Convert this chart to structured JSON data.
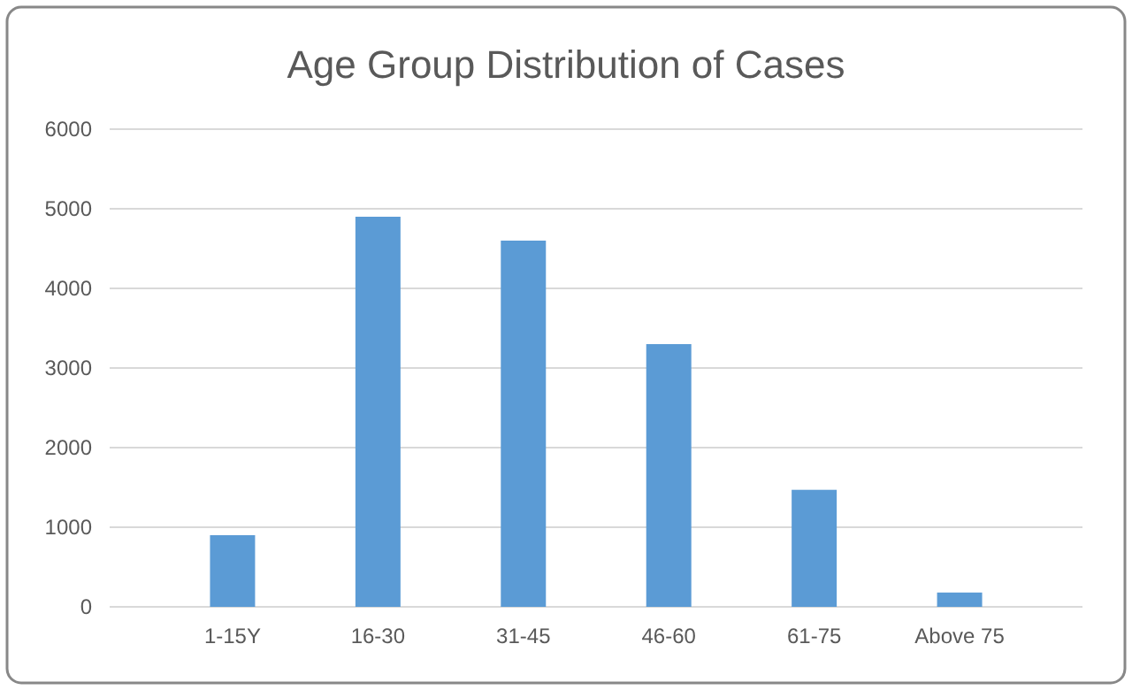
{
  "chart_data": {
    "type": "bar",
    "title": "Age Group Distribution of Cases",
    "categories": [
      "1-15Y",
      "16-30",
      "31-45",
      "46-60",
      "61-75",
      "Above 75"
    ],
    "values": [
      900,
      4900,
      4600,
      3300,
      1470,
      180
    ],
    "color": "#5b9bd5",
    "ylim": [
      0,
      6000
    ],
    "yticks": [
      0,
      1000,
      2000,
      3000,
      4000,
      5000,
      6000
    ],
    "grid": "y"
  }
}
